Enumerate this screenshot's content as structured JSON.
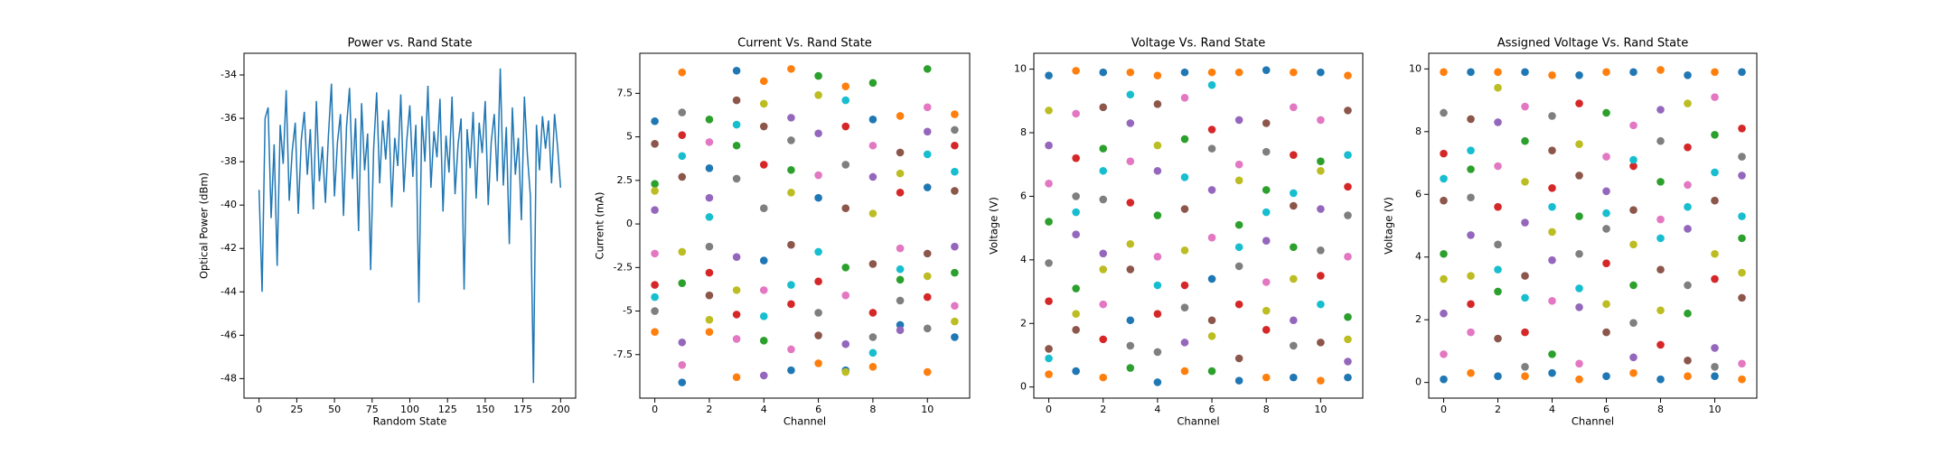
{
  "chart_data": [
    {
      "type": "line",
      "title": "Power vs. Rand State",
      "xlabel": "Random State",
      "ylabel": "Optical Power (dBm)",
      "color": "#1f77b4",
      "x": [
        0,
        2,
        4,
        6,
        8,
        10,
        12,
        14,
        16,
        18,
        20,
        22,
        24,
        26,
        28,
        30,
        32,
        34,
        36,
        38,
        40,
        42,
        44,
        46,
        48,
        50,
        52,
        54,
        56,
        58,
        60,
        62,
        64,
        66,
        68,
        70,
        72,
        74,
        76,
        78,
        80,
        82,
        84,
        86,
        88,
        90,
        92,
        94,
        96,
        98,
        100,
        102,
        104,
        106,
        108,
        110,
        112,
        114,
        116,
        118,
        120,
        122,
        124,
        126,
        128,
        130,
        132,
        134,
        136,
        138,
        140,
        142,
        144,
        146,
        148,
        150,
        152,
        154,
        156,
        158,
        160,
        162,
        164,
        166,
        168,
        170,
        172,
        174,
        176,
        178,
        180,
        182,
        184,
        186,
        188,
        190,
        192,
        194,
        196,
        198,
        200
      ],
      "values": [
        -39.3,
        -44.0,
        -36.0,
        -35.5,
        -40.6,
        -37.2,
        -42.8,
        -36.3,
        -38.1,
        -34.7,
        -39.8,
        -37.5,
        -36.2,
        -40.4,
        -37.0,
        -35.7,
        -38.6,
        -36.5,
        -40.2,
        -35.2,
        -38.9,
        -37.3,
        -39.9,
        -36.8,
        -34.4,
        -39.6,
        -37.1,
        -35.8,
        -40.5,
        -36.4,
        -34.6,
        -38.8,
        -36.0,
        -41.2,
        -35.3,
        -38.4,
        -36.7,
        -43.0,
        -37.4,
        -34.8,
        -39.0,
        -36.1,
        -37.9,
        -35.6,
        -40.1,
        -36.9,
        -38.2,
        -34.9,
        -39.4,
        -37.0,
        -35.4,
        -38.7,
        -36.3,
        -44.5,
        -35.9,
        -38.0,
        -34.5,
        -39.2,
        -36.6,
        -37.8,
        -35.1,
        -40.3,
        -36.8,
        -38.5,
        -35.0,
        -39.5,
        -37.2,
        -36.0,
        -43.9,
        -36.5,
        -38.3,
        -35.7,
        -39.7,
        -36.2,
        -37.6,
        -35.2,
        -40.0,
        -37.1,
        -35.8,
        -38.9,
        -33.7,
        -39.1,
        -36.4,
        -41.8,
        -35.5,
        -38.6,
        -36.9,
        -40.7,
        -35.0,
        -37.7,
        -39.6,
        -48.2,
        -36.3,
        -38.4,
        -35.9,
        -37.4,
        -36.1,
        -39.0,
        -35.8,
        -37.3,
        -39.2
      ],
      "xlim": [
        -10,
        210
      ],
      "xticks": [
        0,
        25,
        50,
        75,
        100,
        125,
        150,
        175,
        200
      ],
      "ylim": [
        -48.9,
        -33.0
      ],
      "yticks": [
        -48,
        -46,
        -44,
        -42,
        -40,
        -38,
        -36,
        -34
      ]
    },
    {
      "type": "scatter",
      "title": "Current Vs. Rand State",
      "xlabel": "Channel",
      "ylabel": "Current (mA)",
      "x": [
        0,
        1,
        2,
        3,
        4,
        5,
        6,
        7,
        8,
        9,
        10,
        11
      ],
      "series": [
        {
          "color": "#1f77b4",
          "values": [
            5.9,
            -9.1,
            3.2,
            8.8,
            -2.1,
            -8.4,
            1.5,
            -8.4,
            6.0,
            -5.8,
            2.1,
            -6.5
          ]
        },
        {
          "color": "#ff7f0e",
          "values": [
            -6.2,
            8.7,
            -6.2,
            -8.8,
            8.2,
            8.9,
            -8.0,
            7.9,
            -8.2,
            6.2,
            -8.5,
            6.3
          ]
        },
        {
          "color": "#2ca02c",
          "values": [
            2.3,
            -3.4,
            6.0,
            4.5,
            -6.7,
            3.1,
            8.5,
            -2.5,
            8.1,
            -3.2,
            8.9,
            -2.8
          ]
        },
        {
          "color": "#d62728",
          "values": [
            -3.5,
            5.1,
            -2.8,
            -5.2,
            3.4,
            -4.6,
            -3.3,
            5.6,
            -5.1,
            1.8,
            -4.2,
            4.5
          ]
        },
        {
          "color": "#9467bd",
          "values": [
            0.8,
            -6.8,
            1.5,
            -1.9,
            -8.7,
            6.1,
            5.2,
            -6.9,
            2.7,
            -6.1,
            5.3,
            -1.3
          ]
        },
        {
          "color": "#8c564b",
          "values": [
            4.6,
            2.7,
            -4.1,
            7.1,
            5.6,
            -1.2,
            -6.4,
            0.9,
            -2.3,
            4.1,
            -1.7,
            1.9
          ]
        },
        {
          "color": "#e377c2",
          "values": [
            -1.7,
            -8.1,
            4.7,
            -6.6,
            -3.8,
            -7.2,
            2.8,
            -4.1,
            4.5,
            -1.4,
            6.7,
            -4.7
          ]
        },
        {
          "color": "#7f7f7f",
          "values": [
            -5.0,
            6.4,
            -1.3,
            2.6,
            0.9,
            4.8,
            -5.1,
            3.4,
            -6.5,
            -4.4,
            -6.0,
            5.4
          ]
        },
        {
          "color": "#bcbd22",
          "values": [
            1.9,
            -1.6,
            -5.5,
            -3.8,
            6.9,
            1.8,
            7.4,
            -8.5,
            0.6,
            2.9,
            -3.0,
            -5.6
          ]
        },
        {
          "color": "#17becf",
          "values": [
            -4.2,
            3.9,
            0.4,
            5.7,
            -5.3,
            -3.5,
            -1.6,
            7.1,
            -7.4,
            -2.6,
            4.0,
            3.0
          ]
        }
      ],
      "xlim": [
        -0.55,
        11.55
      ],
      "xticks": [
        0,
        2,
        4,
        6,
        8,
        10
      ],
      "ylim": [
        -10.0,
        9.8
      ],
      "yticks": [
        -7.5,
        -5.0,
        -2.5,
        0.0,
        2.5,
        5.0,
        7.5
      ]
    },
    {
      "type": "scatter",
      "title": "Voltage Vs. Rand State",
      "xlabel": "Channel",
      "ylabel": "Voltage (V)",
      "x": [
        0,
        1,
        2,
        3,
        4,
        5,
        6,
        7,
        8,
        9,
        10,
        11
      ],
      "series": [
        {
          "color": "#1f77b4",
          "values": [
            9.8,
            0.5,
            9.9,
            2.1,
            0.15,
            9.9,
            3.4,
            0.2,
            9.97,
            0.3,
            9.9,
            0.3
          ]
        },
        {
          "color": "#ff7f0e",
          "values": [
            0.4,
            9.95,
            0.3,
            9.9,
            9.8,
            0.5,
            9.9,
            9.9,
            0.3,
            9.9,
            0.2,
            9.8
          ]
        },
        {
          "color": "#2ca02c",
          "values": [
            5.2,
            3.1,
            7.5,
            0.6,
            5.4,
            7.8,
            0.5,
            5.1,
            6.2,
            4.4,
            7.1,
            2.2
          ]
        },
        {
          "color": "#d62728",
          "values": [
            2.7,
            7.2,
            1.5,
            5.8,
            2.3,
            3.2,
            8.1,
            2.6,
            1.8,
            7.3,
            3.5,
            6.3
          ]
        },
        {
          "color": "#9467bd",
          "values": [
            7.6,
            4.8,
            4.2,
            8.3,
            6.8,
            1.4,
            6.2,
            8.4,
            4.6,
            2.1,
            5.6,
            0.8
          ]
        },
        {
          "color": "#8c564b",
          "values": [
            1.2,
            1.8,
            8.8,
            3.7,
            8.9,
            5.6,
            2.1,
            0.9,
            8.3,
            5.7,
            1.4,
            8.7
          ]
        },
        {
          "color": "#e377c2",
          "values": [
            6.4,
            8.6,
            2.6,
            7.1,
            4.1,
            9.1,
            4.7,
            7.0,
            3.3,
            8.8,
            8.4,
            4.1
          ]
        },
        {
          "color": "#7f7f7f",
          "values": [
            3.9,
            6.0,
            5.9,
            1.3,
            1.1,
            2.5,
            7.5,
            3.8,
            7.4,
            1.3,
            4.3,
            5.4
          ]
        },
        {
          "color": "#bcbd22",
          "values": [
            8.7,
            2.3,
            3.7,
            4.5,
            7.6,
            4.3,
            1.6,
            6.5,
            2.4,
            3.4,
            6.8,
            1.5
          ]
        },
        {
          "color": "#17becf",
          "values": [
            0.9,
            5.5,
            6.8,
            9.2,
            3.2,
            6.6,
            9.5,
            4.4,
            5.5,
            6.1,
            2.6,
            7.3
          ]
        }
      ],
      "xlim": [
        -0.55,
        11.55
      ],
      "xticks": [
        0,
        2,
        4,
        6,
        8,
        10
      ],
      "ylim": [
        -0.35,
        10.5
      ],
      "yticks": [
        0,
        2,
        4,
        6,
        8,
        10
      ]
    },
    {
      "type": "scatter",
      "title": "Assigned Voltage Vs. Rand State",
      "xlabel": "Channel",
      "ylabel": "Voltage (V)",
      "x": [
        0,
        1,
        2,
        3,
        4,
        5,
        6,
        7,
        8,
        9,
        10,
        11
      ],
      "series": [
        {
          "color": "#1f77b4",
          "values": [
            0.1,
            9.9,
            0.2,
            9.9,
            0.3,
            9.8,
            0.2,
            9.9,
            0.1,
            9.8,
            0.2,
            9.9
          ]
        },
        {
          "color": "#ff7f0e",
          "values": [
            9.9,
            0.3,
            9.9,
            0.2,
            9.8,
            0.1,
            9.9,
            0.3,
            9.97,
            0.2,
            9.9,
            0.1
          ]
        },
        {
          "color": "#2ca02c",
          "values": [
            4.1,
            6.8,
            2.9,
            7.7,
            0.9,
            5.3,
            8.6,
            3.1,
            6.4,
            2.2,
            7.9,
            4.6
          ]
        },
        {
          "color": "#d62728",
          "values": [
            7.3,
            2.5,
            5.6,
            1.6,
            6.2,
            8.9,
            3.8,
            6.9,
            1.2,
            7.5,
            3.3,
            8.1
          ]
        },
        {
          "color": "#9467bd",
          "values": [
            2.2,
            4.7,
            8.3,
            5.1,
            3.9,
            2.4,
            6.1,
            0.8,
            8.7,
            4.9,
            1.1,
            6.6
          ]
        },
        {
          "color": "#8c564b",
          "values": [
            5.8,
            8.4,
            1.4,
            3.4,
            7.4,
            6.6,
            1.6,
            5.5,
            3.6,
            0.7,
            5.8,
            2.7
          ]
        },
        {
          "color": "#e377c2",
          "values": [
            0.9,
            1.6,
            6.9,
            8.8,
            2.6,
            0.6,
            7.2,
            8.2,
            5.2,
            6.3,
            9.1,
            0.6
          ]
        },
        {
          "color": "#7f7f7f",
          "values": [
            8.6,
            5.9,
            4.4,
            0.5,
            8.5,
            4.1,
            4.9,
            1.9,
            7.7,
            3.1,
            0.5,
            7.2
          ]
        },
        {
          "color": "#bcbd22",
          "values": [
            3.3,
            3.4,
            9.4,
            6.4,
            4.8,
            7.6,
            2.5,
            4.4,
            2.3,
            8.9,
            4.1,
            3.5
          ]
        },
        {
          "color": "#17becf",
          "values": [
            6.5,
            7.4,
            3.6,
            2.7,
            5.6,
            3.0,
            5.4,
            7.1,
            4.6,
            5.6,
            6.7,
            5.3
          ]
        }
      ],
      "xlim": [
        -0.55,
        11.55
      ],
      "xticks": [
        0,
        2,
        4,
        6,
        8,
        10
      ],
      "ylim": [
        -0.5,
        10.5
      ],
      "yticks": [
        0,
        2,
        4,
        6,
        8,
        10
      ]
    }
  ]
}
